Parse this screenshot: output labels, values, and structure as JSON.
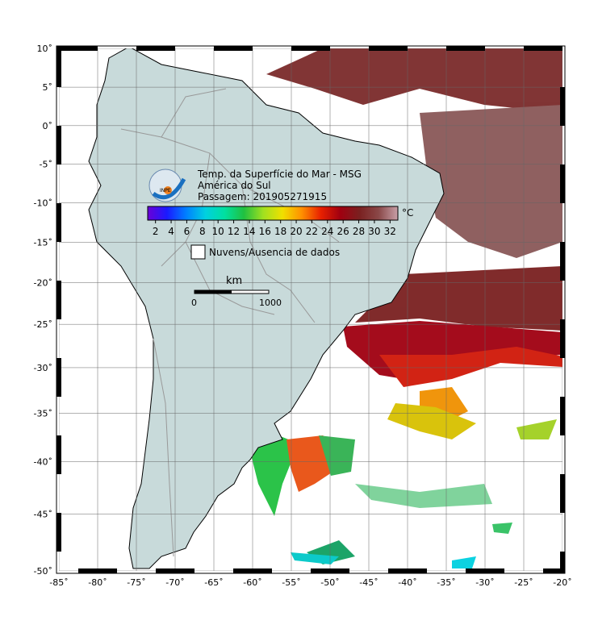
{
  "map": {
    "title": [
      "Temp. da Superfície do Mar - MSG",
      "América do Sul",
      "Passagem: 201905271915"
    ],
    "logo": "INPE",
    "projection": "mercator",
    "xlim": [
      -85,
      -20
    ],
    "ylim": [
      -50,
      10
    ],
    "xticks": [
      {
        "value": -85,
        "label": "-85˚"
      },
      {
        "value": -80,
        "label": "-80˚"
      },
      {
        "value": -75,
        "label": "-75˚"
      },
      {
        "value": -70,
        "label": "-70˚"
      },
      {
        "value": -65,
        "label": "-65˚"
      },
      {
        "value": -60,
        "label": "-60˚"
      },
      {
        "value": -55,
        "label": "-55˚"
      },
      {
        "value": -50,
        "label": "-50˚"
      },
      {
        "value": -45,
        "label": "-45˚"
      },
      {
        "value": -40,
        "label": "-40˚"
      },
      {
        "value": -35,
        "label": "-35˚"
      },
      {
        "value": -30,
        "label": "-30˚"
      },
      {
        "value": -25,
        "label": "-25˚"
      },
      {
        "value": -20,
        "label": "-20˚"
      }
    ],
    "yticks": [
      {
        "value": 10,
        "label": "10˚"
      },
      {
        "value": 5,
        "label": "5˚"
      },
      {
        "value": 0,
        "label": "0˚"
      },
      {
        "value": -5,
        "label": "-5˚"
      },
      {
        "value": -10,
        "label": "-10˚"
      },
      {
        "value": -15,
        "label": "-15˚"
      },
      {
        "value": -20,
        "label": "-20˚"
      },
      {
        "value": -25,
        "label": "-25˚"
      },
      {
        "value": -30,
        "label": "-30˚"
      },
      {
        "value": -35,
        "label": "-35˚"
      },
      {
        "value": -40,
        "label": "-40˚"
      },
      {
        "value": -45,
        "label": "-45˚"
      },
      {
        "value": -50,
        "label": "-50˚"
      }
    ],
    "grid": true,
    "colorbar": {
      "lim": [
        1,
        33
      ],
      "ticks": [
        2,
        4,
        6,
        8,
        10,
        12,
        14,
        16,
        18,
        20,
        22,
        24,
        26,
        28,
        30,
        32
      ],
      "unit": "°C",
      "colors": [
        "#6a00d8",
        "#1a1aff",
        "#0080ff",
        "#00d0e0",
        "#00e0a0",
        "#20c040",
        "#a0e020",
        "#f0e000",
        "#ff9000",
        "#e82000",
        "#a00010",
        "#7a2020",
        "#8a4848",
        "#c8a0a8"
      ]
    },
    "legend": "Nuvens/Ausencia de dados",
    "scale_bar": {
      "unit": "km",
      "labels": [
        "0",
        "1000"
      ]
    }
  }
}
